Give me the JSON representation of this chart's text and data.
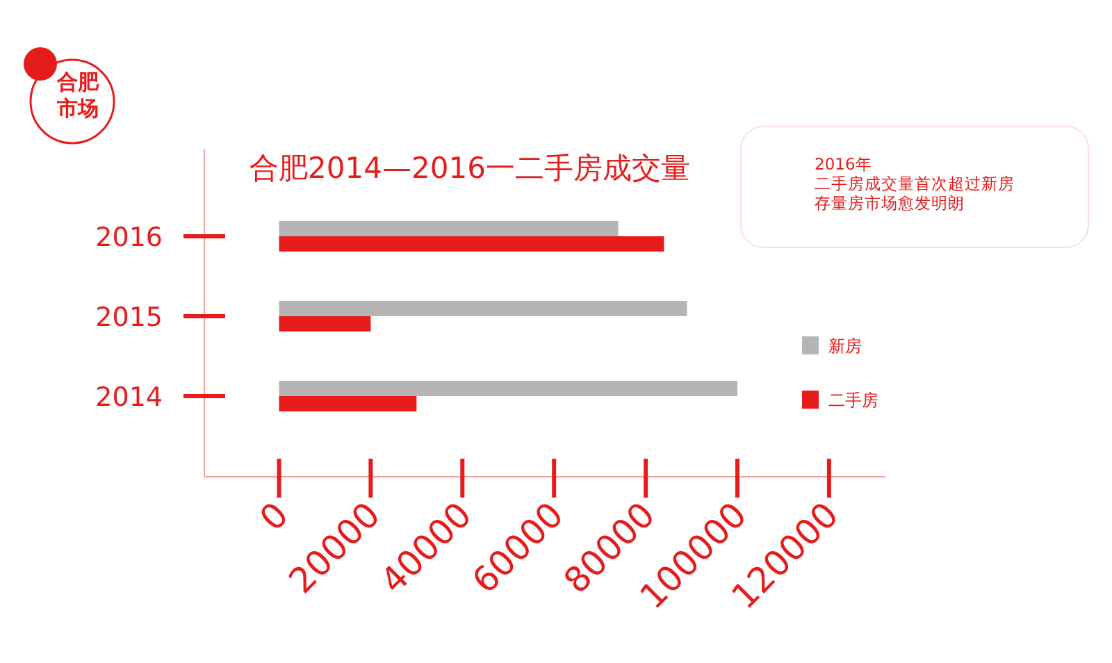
{
  "chart_data": {
    "type": "bar",
    "orientation": "horizontal",
    "title": "合肥2014—2016一二手房成交量",
    "categories": [
      "2016",
      "2015",
      "2014"
    ],
    "series": [
      {
        "name": "新房",
        "color": "#b4b5b4",
        "values": [
          74000,
          89000,
          100000
        ]
      },
      {
        "name": "二手房",
        "color": "#e61c1c",
        "values": [
          84000,
          20000,
          30000
        ]
      }
    ],
    "xlim": [
      -16300,
      132300
    ],
    "xticks": [
      0,
      20000,
      40000,
      60000,
      80000,
      100000,
      120000
    ],
    "grid": false,
    "legend": "right",
    "annotations": [
      "合肥",
      "市场",
      "2016年",
      "二手房成交量首次超过新房",
      "存量房市场愈发明朗"
    ]
  }
}
